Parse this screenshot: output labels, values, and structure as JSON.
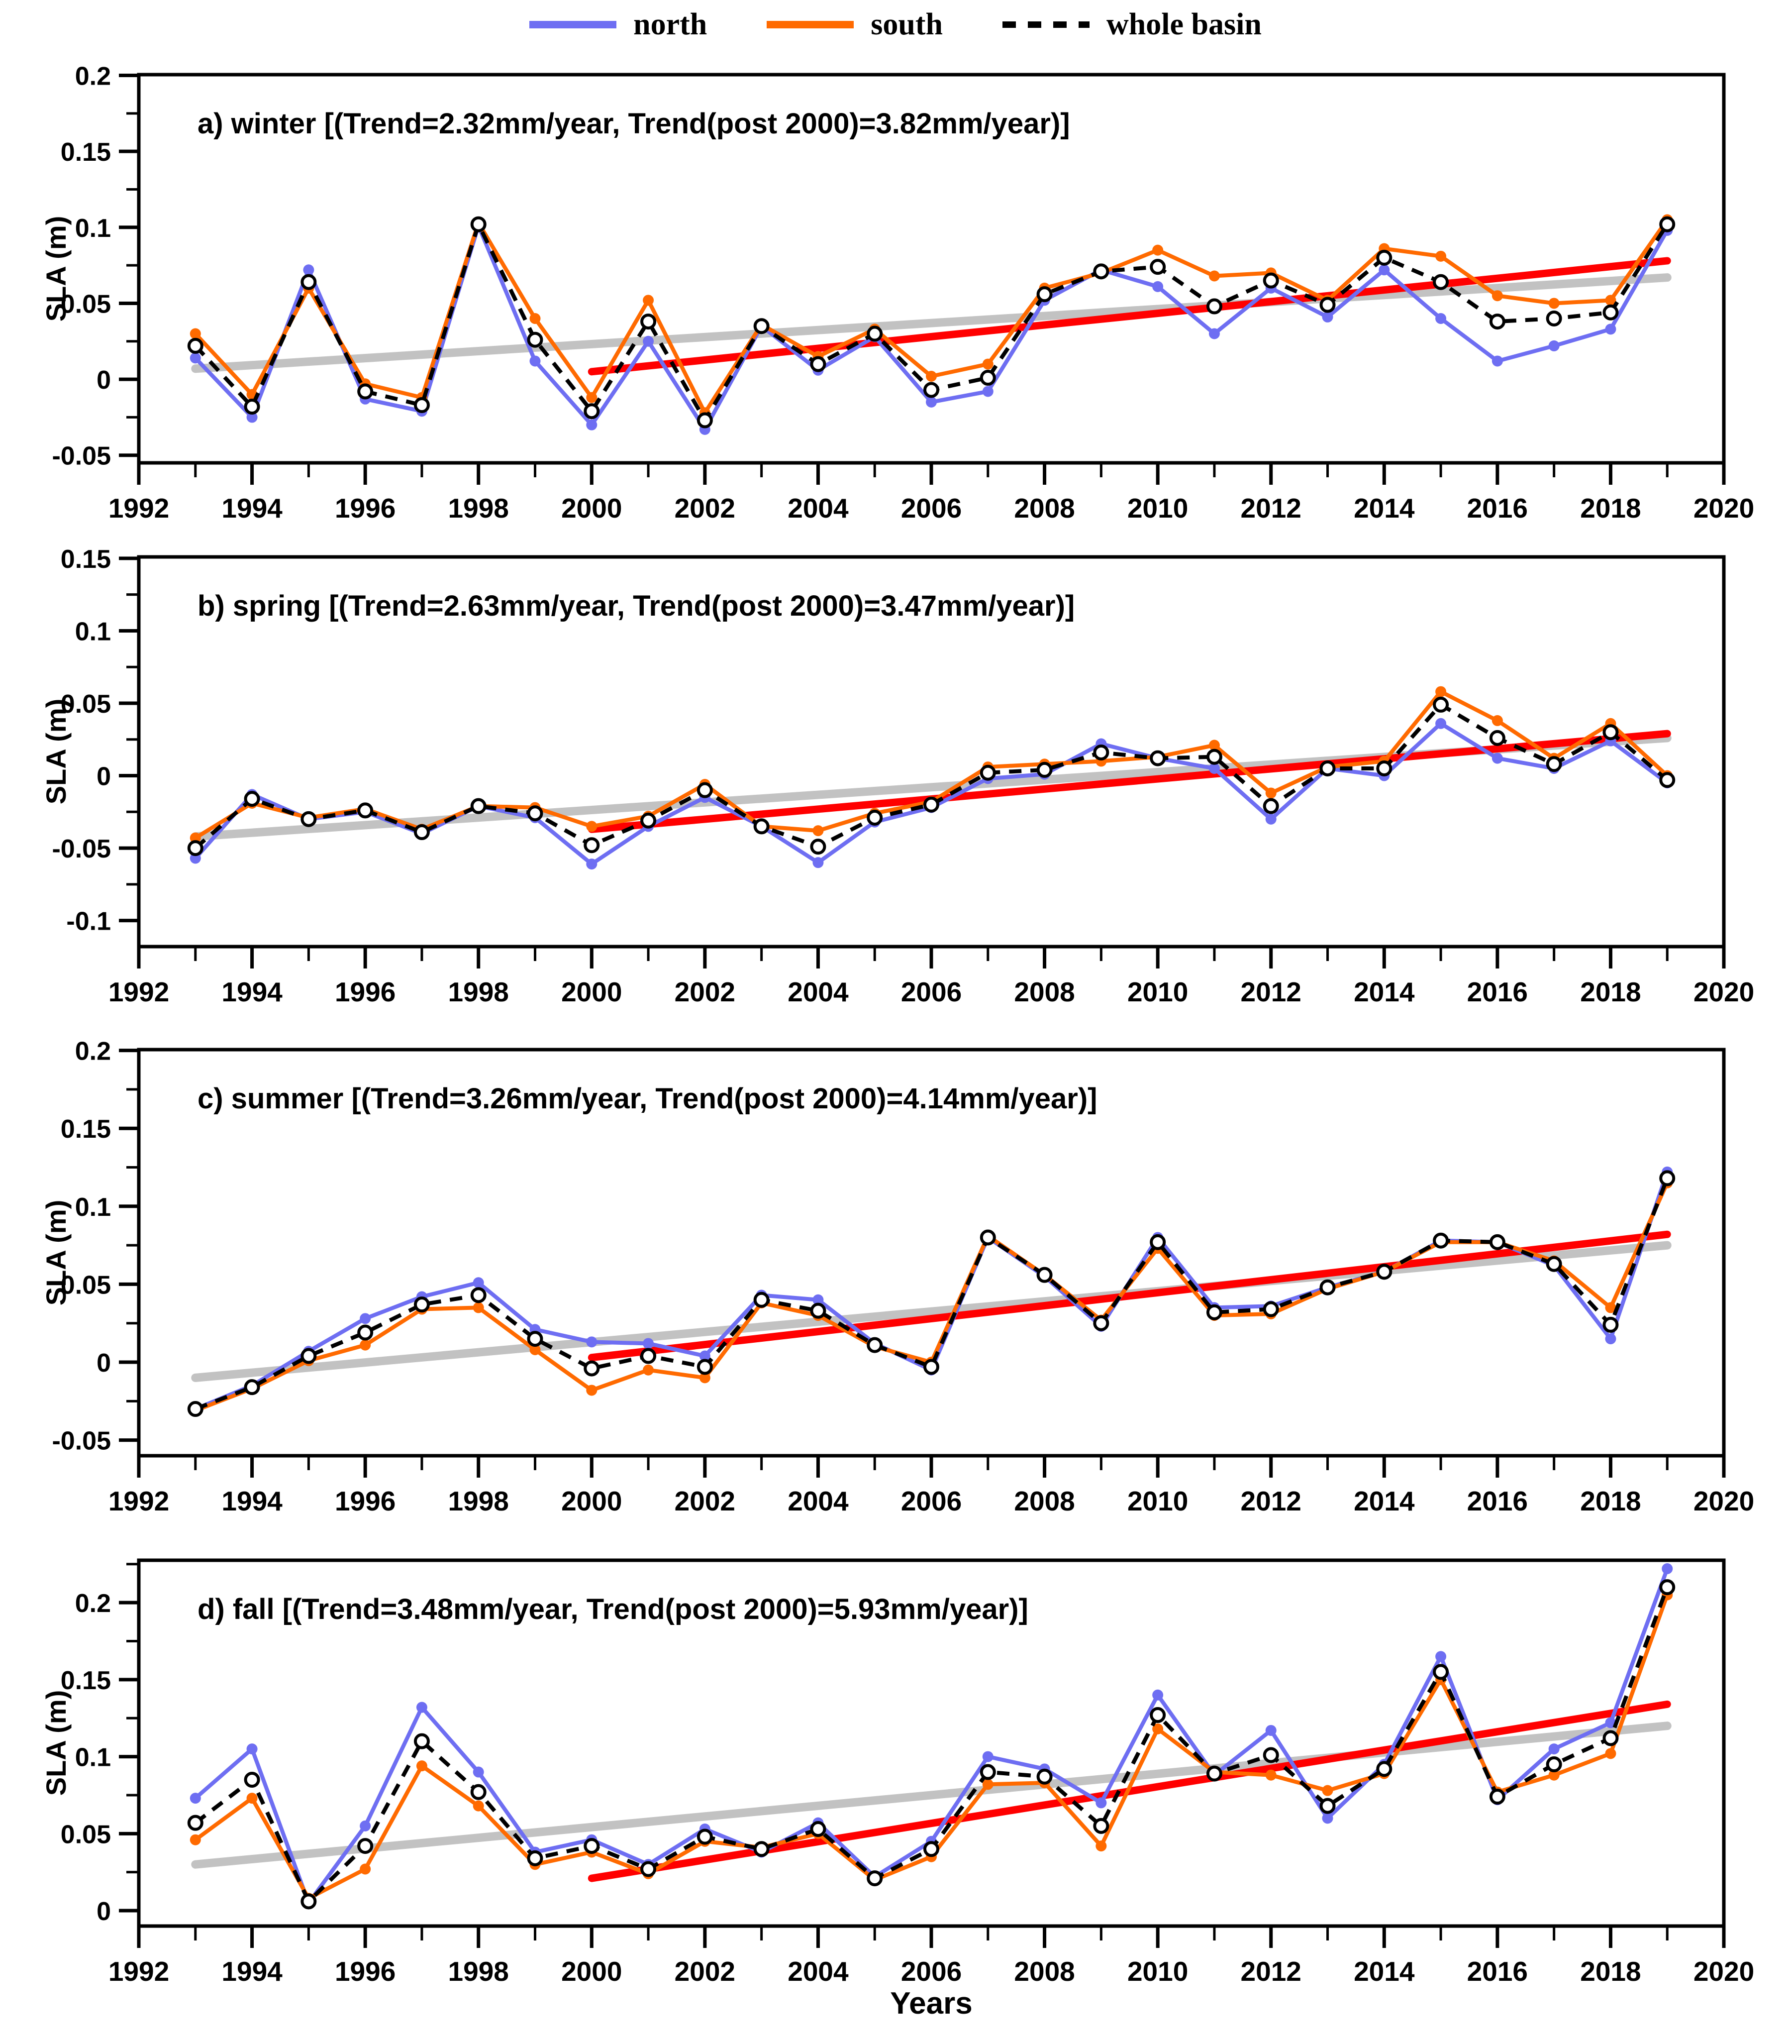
{
  "legend": {
    "items": [
      {
        "label": "north",
        "color": "#6e6ef2",
        "style": "solid"
      },
      {
        "label": "south",
        "color": "#ff6a00",
        "style": "solid"
      },
      {
        "label": "whole basin",
        "color": "#000000",
        "style": "dashed"
      }
    ]
  },
  "axes": {
    "x_title": "Years",
    "y_title": "SLA (m)",
    "x_range": [
      1992,
      2020
    ],
    "x_label_step": 2
  },
  "colors": {
    "north": "#6e6ef2",
    "south": "#ff6a00",
    "whole_basin": "#000000",
    "trend_full_period": "#c2c2c2",
    "trend_post_2000": "#ff0000"
  },
  "chart_data": [
    {
      "id": "a",
      "type": "line",
      "season": "winter",
      "title": "a) winter [(Trend=2.32mm/year, Trend(post 2000)=3.82mm/year)]",
      "trend_mm_per_year": 2.32,
      "trend_post_2000_mm_per_year": 3.82,
      "ylabel": "SLA (m)",
      "ylim": [
        -0.055,
        0.2005
      ],
      "ytick_interval": 0.05,
      "years": [
        1993,
        1994,
        1995,
        1996,
        1997,
        1998,
        1999,
        2000,
        2001,
        2002,
        2003,
        2004,
        2005,
        2006,
        2007,
        2008,
        2009,
        2010,
        2011,
        2012,
        2013,
        2014,
        2015,
        2016,
        2017,
        2018,
        2019
      ],
      "series": [
        {
          "name": "north",
          "values": [
            0.014,
            -0.025,
            0.072,
            -0.013,
            -0.021,
            0.101,
            0.012,
            -0.03,
            0.025,
            -0.033,
            0.035,
            0.006,
            0.028,
            -0.015,
            -0.008,
            0.052,
            0.072,
            0.061,
            0.03,
            0.06,
            0.041,
            0.072,
            0.04,
            0.012,
            0.022,
            0.033,
            0.098
          ]
        },
        {
          "name": "south",
          "values": [
            0.03,
            -0.01,
            0.06,
            -0.003,
            -0.012,
            0.103,
            0.04,
            -0.012,
            0.052,
            -0.022,
            0.036,
            0.015,
            0.033,
            0.002,
            0.01,
            0.06,
            0.07,
            0.085,
            0.068,
            0.07,
            0.052,
            0.086,
            0.081,
            0.055,
            0.05,
            0.052,
            0.105
          ]
        },
        {
          "name": "whole basin",
          "values": [
            0.022,
            -0.018,
            0.064,
            -0.008,
            -0.017,
            0.102,
            0.026,
            -0.021,
            0.038,
            -0.027,
            0.035,
            0.01,
            0.03,
            -0.007,
            0.001,
            0.056,
            0.071,
            0.074,
            0.048,
            0.065,
            0.049,
            0.08,
            0.064,
            0.038,
            0.04,
            0.044,
            0.102
          ]
        }
      ],
      "trend_lines": [
        {
          "name": "trend-full-period",
          "color": "#c2c2c2",
          "x": [
            1993,
            2019
          ],
          "y": [
            0.007,
            0.067
          ]
        },
        {
          "name": "trend-post-2000",
          "color": "#ff0000",
          "x": [
            2000,
            2019
          ],
          "y": [
            0.005,
            0.078
          ]
        }
      ]
    },
    {
      "id": "b",
      "type": "line",
      "season": "spring",
      "title": "b) spring [(Trend=2.63mm/year, Trend(post 2000)=3.47mm/year)]",
      "trend_mm_per_year": 2.63,
      "trend_post_2000_mm_per_year": 3.47,
      "ylabel": "SLA (m)",
      "ylim": [
        -0.118,
        0.151
      ],
      "ytick_interval": 0.05,
      "years": [
        1993,
        1994,
        1995,
        1996,
        1997,
        1998,
        1999,
        2000,
        2001,
        2002,
        2003,
        2004,
        2005,
        2006,
        2007,
        2008,
        2009,
        2010,
        2011,
        2012,
        2013,
        2014,
        2015,
        2016,
        2017,
        2018,
        2019
      ],
      "series": [
        {
          "name": "north",
          "values": [
            -0.057,
            -0.013,
            -0.03,
            -0.025,
            -0.04,
            -0.021,
            -0.029,
            -0.061,
            -0.035,
            -0.015,
            -0.035,
            -0.06,
            -0.032,
            -0.022,
            -0.002,
            0.001,
            0.022,
            0.012,
            0.005,
            -0.03,
            0.005,
            0.0,
            0.036,
            0.012,
            0.005,
            0.024,
            -0.005
          ]
        },
        {
          "name": "south",
          "values": [
            -0.043,
            -0.019,
            -0.029,
            -0.023,
            -0.037,
            -0.021,
            -0.022,
            -0.035,
            -0.028,
            -0.006,
            -0.035,
            -0.038,
            -0.026,
            -0.018,
            0.006,
            0.008,
            0.01,
            0.013,
            0.021,
            -0.012,
            0.006,
            0.01,
            0.058,
            0.038,
            0.012,
            0.036,
            0.0
          ]
        },
        {
          "name": "whole basin",
          "values": [
            -0.05,
            -0.016,
            -0.03,
            -0.024,
            -0.039,
            -0.021,
            -0.026,
            -0.048,
            -0.031,
            -0.01,
            -0.035,
            -0.049,
            -0.029,
            -0.02,
            0.002,
            0.004,
            0.016,
            0.012,
            0.013,
            -0.021,
            0.005,
            0.005,
            0.049,
            0.026,
            0.008,
            0.03,
            -0.003
          ]
        }
      ],
      "trend_lines": [
        {
          "name": "trend-full-period",
          "color": "#c2c2c2",
          "x": [
            1993,
            2019
          ],
          "y": [
            -0.042,
            0.026
          ]
        },
        {
          "name": "trend-post-2000",
          "color": "#ff0000",
          "x": [
            2000,
            2019
          ],
          "y": [
            -0.037,
            0.029
          ]
        }
      ]
    },
    {
      "id": "c",
      "type": "line",
      "season": "summer",
      "title": "c) summer [(Trend=3.26mm/year, Trend(post 2000)=4.14mm/year)]",
      "trend_mm_per_year": 3.26,
      "trend_post_2000_mm_per_year": 4.14,
      "ylabel": "SLA (m)",
      "ylim": [
        -0.06,
        0.2005
      ],
      "ytick_interval": 0.05,
      "years": [
        1993,
        1994,
        1995,
        1996,
        1997,
        1998,
        1999,
        2000,
        2001,
        2002,
        2003,
        2004,
        2005,
        2006,
        2007,
        2008,
        2009,
        2010,
        2011,
        2012,
        2013,
        2014,
        2015,
        2016,
        2017,
        2018,
        2019
      ],
      "series": [
        {
          "name": "north",
          "values": [
            -0.03,
            -0.015,
            0.007,
            0.028,
            0.042,
            0.051,
            0.021,
            0.013,
            0.012,
            0.004,
            0.043,
            0.04,
            0.012,
            -0.005,
            0.08,
            0.055,
            0.023,
            0.08,
            0.035,
            0.036,
            0.048,
            0.058,
            0.078,
            0.077,
            0.062,
            0.015,
            0.122
          ]
        },
        {
          "name": "south",
          "values": [
            -0.031,
            -0.017,
            0.001,
            0.011,
            0.034,
            0.035,
            0.008,
            -0.018,
            -0.005,
            -0.01,
            0.038,
            0.03,
            0.01,
            0.0,
            0.081,
            0.056,
            0.027,
            0.073,
            0.03,
            0.031,
            0.047,
            0.058,
            0.077,
            0.077,
            0.065,
            0.035,
            0.115
          ]
        },
        {
          "name": "whole basin",
          "values": [
            -0.03,
            -0.016,
            0.004,
            0.019,
            0.037,
            0.043,
            0.015,
            -0.004,
            0.004,
            -0.003,
            0.04,
            0.033,
            0.011,
            -0.003,
            0.08,
            0.056,
            0.025,
            0.077,
            0.032,
            0.034,
            0.048,
            0.058,
            0.078,
            0.077,
            0.063,
            0.024,
            0.118
          ]
        }
      ],
      "trend_lines": [
        {
          "name": "trend-full-period",
          "color": "#c2c2c2",
          "x": [
            1993,
            2019
          ],
          "y": [
            -0.01,
            0.075
          ]
        },
        {
          "name": "trend-post-2000",
          "color": "#ff0000",
          "x": [
            2000,
            2019
          ],
          "y": [
            0.003,
            0.082
          ]
        }
      ]
    },
    {
      "id": "d",
      "type": "line",
      "season": "fall",
      "title": "d) fall [(Trend=3.48mm/year, Trend(post 2000)=5.93mm/year)]",
      "trend_mm_per_year": 3.48,
      "trend_post_2000_mm_per_year": 5.93,
      "ylabel": "SLA (m)",
      "ylim": [
        -0.01,
        0.2275
      ],
      "ytick_interval": 0.05,
      "years": [
        1993,
        1994,
        1995,
        1996,
        1997,
        1998,
        1999,
        2000,
        2001,
        2002,
        2003,
        2004,
        2005,
        2006,
        2007,
        2008,
        2009,
        2010,
        2011,
        2012,
        2013,
        2014,
        2015,
        2016,
        2017,
        2018,
        2019
      ],
      "series": [
        {
          "name": "north",
          "values": [
            0.073,
            0.105,
            0.005,
            0.055,
            0.132,
            0.09,
            0.038,
            0.046,
            0.03,
            0.053,
            0.038,
            0.057,
            0.022,
            0.045,
            0.1,
            0.092,
            0.07,
            0.14,
            0.088,
            0.117,
            0.06,
            0.095,
            0.165,
            0.072,
            0.105,
            0.122,
            0.222
          ]
        },
        {
          "name": "south",
          "values": [
            0.046,
            0.073,
            0.008,
            0.027,
            0.094,
            0.068,
            0.03,
            0.038,
            0.024,
            0.045,
            0.041,
            0.05,
            0.02,
            0.035,
            0.082,
            0.083,
            0.042,
            0.118,
            0.09,
            0.088,
            0.078,
            0.089,
            0.15,
            0.077,
            0.088,
            0.102,
            0.205
          ]
        },
        {
          "name": "whole basin",
          "values": [
            0.057,
            0.085,
            0.006,
            0.042,
            0.11,
            0.077,
            0.034,
            0.042,
            0.027,
            0.048,
            0.04,
            0.053,
            0.021,
            0.04,
            0.09,
            0.087,
            0.055,
            0.127,
            0.089,
            0.101,
            0.068,
            0.092,
            0.155,
            0.074,
            0.095,
            0.112,
            0.21
          ]
        }
      ],
      "trend_lines": [
        {
          "name": "trend-full-period",
          "color": "#c2c2c2",
          "x": [
            1993,
            2019
          ],
          "y": [
            0.03,
            0.12
          ]
        },
        {
          "name": "trend-post-2000",
          "color": "#ff0000",
          "x": [
            2000,
            2019
          ],
          "y": [
            0.021,
            0.134
          ]
        }
      ]
    }
  ]
}
